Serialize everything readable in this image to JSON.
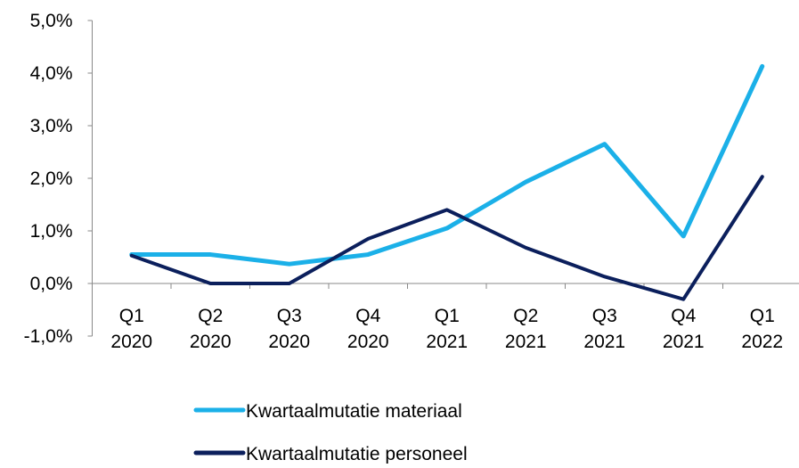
{
  "chart_data": {
    "type": "line",
    "categories": [
      "Q1 2020",
      "Q2 2020",
      "Q3 2020",
      "Q4 2020",
      "Q1 2021",
      "Q2 2021",
      "Q3 2021",
      "Q4 2021",
      "Q1 2022"
    ],
    "series": [
      {
        "name": "Kwartaalmutatie materiaal",
        "color": "#1bb0e8",
        "values": [
          0.55,
          0.55,
          0.37,
          0.55,
          1.05,
          1.93,
          2.65,
          0.9,
          4.13
        ]
      },
      {
        "name": "Kwartaalmutatie personeel",
        "color": "#0b1f5c",
        "values": [
          0.53,
          0.0,
          0.0,
          0.85,
          1.4,
          0.68,
          0.13,
          -0.3,
          2.03
        ]
      }
    ],
    "ylim": [
      -1.0,
      5.0
    ],
    "yticks": [
      {
        "value": -1.0,
        "label": "-1,0%"
      },
      {
        "value": 0.0,
        "label": "0,0%"
      },
      {
        "value": 1.0,
        "label": "1,0%"
      },
      {
        "value": 2.0,
        "label": "2,0%"
      },
      {
        "value": 3.0,
        "label": "3,0%"
      },
      {
        "value": 4.0,
        "label": "4,0%"
      },
      {
        "value": 5.0,
        "label": "5,0%"
      }
    ],
    "legend": "bottom"
  }
}
